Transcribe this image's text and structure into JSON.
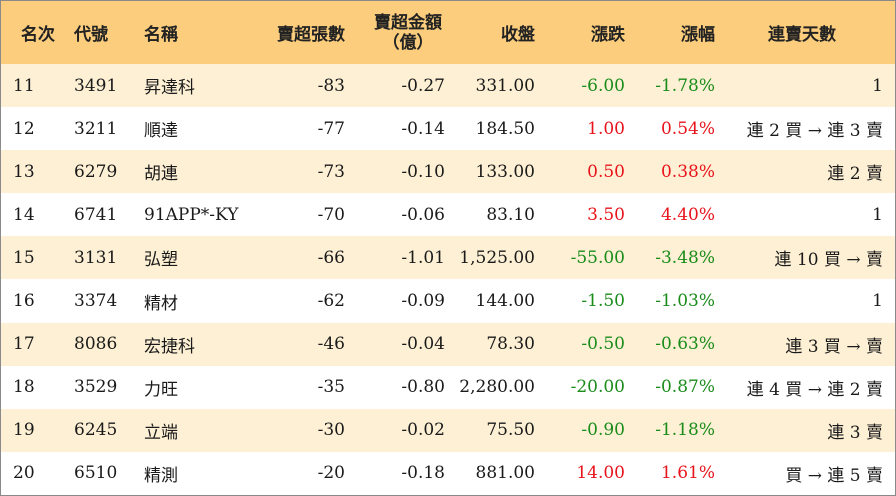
{
  "headers": {
    "rank": "名次",
    "code": "代號",
    "name": "名稱",
    "sheets": "賣超張數",
    "amount_line1": "賣超金額",
    "amount_line2": "（億）",
    "close": "收盤",
    "chg": "漲跌",
    "pct": "漲幅",
    "streak": "連賣天數"
  },
  "colors": {
    "header_bg": "#fbcd7c",
    "stripe_bg": "#fdf0d4",
    "up": "#e8131b",
    "down": "#1a8c1a"
  },
  "rows": [
    {
      "rank": "11",
      "code": "3491",
      "name": "昇達科",
      "sheets": "-83",
      "amount": "-0.27",
      "close": "331.00",
      "chg": "-6.00",
      "pct": "-1.78%",
      "dir": "down",
      "streak": "1"
    },
    {
      "rank": "12",
      "code": "3211",
      "name": "順達",
      "sheets": "-77",
      "amount": "-0.14",
      "close": "184.50",
      "chg": "1.00",
      "pct": "0.54%",
      "dir": "up",
      "streak": "連 2 買 → 連 3 賣"
    },
    {
      "rank": "13",
      "code": "6279",
      "name": "胡連",
      "sheets": "-73",
      "amount": "-0.10",
      "close": "133.00",
      "chg": "0.50",
      "pct": "0.38%",
      "dir": "up",
      "streak": "連 2 賣"
    },
    {
      "rank": "14",
      "code": "6741",
      "name": "91APP*-KY",
      "sheets": "-70",
      "amount": "-0.06",
      "close": "83.10",
      "chg": "3.50",
      "pct": "4.40%",
      "dir": "up",
      "streak": "1"
    },
    {
      "rank": "15",
      "code": "3131",
      "name": "弘塑",
      "sheets": "-66",
      "amount": "-1.01",
      "close": "1,525.00",
      "chg": "-55.00",
      "pct": "-3.48%",
      "dir": "down",
      "streak": "連 10 買 → 賣"
    },
    {
      "rank": "16",
      "code": "3374",
      "name": "精材",
      "sheets": "-62",
      "amount": "-0.09",
      "close": "144.00",
      "chg": "-1.50",
      "pct": "-1.03%",
      "dir": "down",
      "streak": "1"
    },
    {
      "rank": "17",
      "code": "8086",
      "name": "宏捷科",
      "sheets": "-46",
      "amount": "-0.04",
      "close": "78.30",
      "chg": "-0.50",
      "pct": "-0.63%",
      "dir": "down",
      "streak": "連 3 買 → 賣"
    },
    {
      "rank": "18",
      "code": "3529",
      "name": "力旺",
      "sheets": "-35",
      "amount": "-0.80",
      "close": "2,280.00",
      "chg": "-20.00",
      "pct": "-0.87%",
      "dir": "down",
      "streak": "連 4 買 → 連 2 賣"
    },
    {
      "rank": "19",
      "code": "6245",
      "name": "立端",
      "sheets": "-30",
      "amount": "-0.02",
      "close": "75.50",
      "chg": "-0.90",
      "pct": "-1.18%",
      "dir": "down",
      "streak": "連 3 賣"
    },
    {
      "rank": "20",
      "code": "6510",
      "name": "精測",
      "sheets": "-20",
      "amount": "-0.18",
      "close": "881.00",
      "chg": "14.00",
      "pct": "1.61%",
      "dir": "up",
      "streak": "買 → 連 5 賣"
    }
  ]
}
